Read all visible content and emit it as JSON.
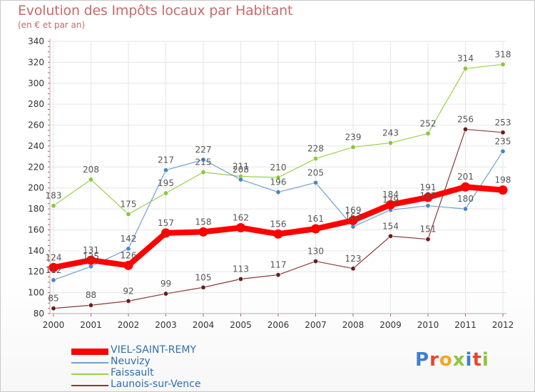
{
  "header": {
    "title": "Evolution des Impôts locaux par Habitant",
    "subtitle": "(en € et par an)"
  },
  "brand": {
    "logo_letters": [
      "P",
      "r",
      "o",
      "x",
      "i",
      "t",
      "i"
    ]
  },
  "colors": {
    "title": "#c86a6a",
    "grid": "#e6e6e6",
    "axis": "#b0b0b0",
    "logo": [
      "#3f7fcf",
      "#e8452c",
      "#f4a622",
      "#8cc63f",
      "#3f7fcf",
      "#e8452c",
      "#8cc63f"
    ]
  },
  "chart_data": {
    "type": "line",
    "title": "Evolution des Impôts locaux par Habitant",
    "subtitle": "(en € et par an)",
    "xlabel": "",
    "ylabel": "",
    "ylim": [
      80,
      340
    ],
    "yticks": [
      80,
      100,
      120,
      140,
      160,
      180,
      200,
      220,
      240,
      260,
      280,
      300,
      320,
      340
    ],
    "grid": true,
    "legend_position": "bottom-left",
    "x": [
      "2000",
      "2001",
      "2002",
      "2003",
      "2004",
      "2005",
      "2006",
      "2007",
      "2008",
      "2009",
      "2010",
      "2011",
      "2012"
    ],
    "series": [
      {
        "name": "Launois-sur-Vence",
        "color": "#8b3a3a",
        "marker": "#6e1a1a",
        "width": 1.2,
        "values": [
          85,
          88,
          92,
          99,
          105,
          113,
          117,
          130,
          123,
          154,
          151,
          256,
          253
        ]
      },
      {
        "name": "Faissault",
        "color": "#9ad24a",
        "marker": "#8cc63f",
        "width": 1.2,
        "values": [
          183,
          208,
          175,
          195,
          215,
          211,
          210,
          228,
          239,
          243,
          252,
          314,
          318
        ]
      },
      {
        "name": "Neuvizy",
        "color": "#6fa0d4",
        "marker": "#4a86c5",
        "width": 1.2,
        "values": [
          112,
          125,
          142,
          217,
          227,
          208,
          196,
          205,
          163,
          179,
          183,
          180,
          235
        ]
      },
      {
        "name": "VIEL-SAINT-REMY",
        "color": "#ff0000",
        "marker": "#ff0000",
        "width": 8,
        "values": [
          124,
          131,
          126,
          157,
          158,
          162,
          156,
          161,
          169,
          184,
          191,
          201,
          198
        ]
      }
    ],
    "legend_order": [
      "VIEL-SAINT-REMY",
      "Neuvizy",
      "Faissault",
      "Launois-sur-Vence"
    ]
  }
}
